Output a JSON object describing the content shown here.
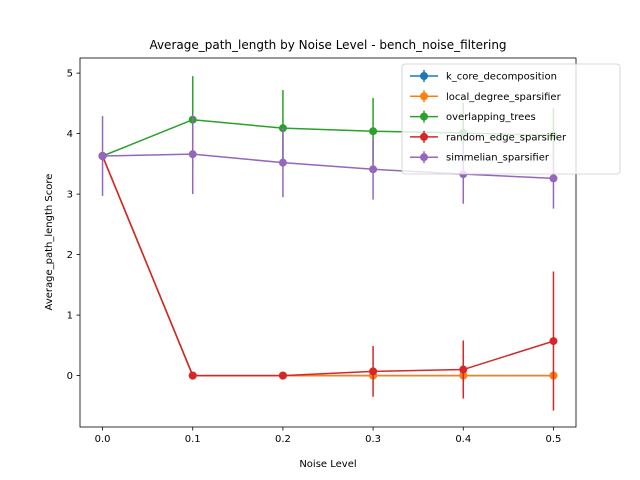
{
  "chart_data": {
    "type": "line",
    "title": "Average_path_length by Noise Level - bench_noise_filtering",
    "xlabel": "Noise Level",
    "ylabel": "Average_path_length Score",
    "x": [
      0.0,
      0.1,
      0.2,
      0.3,
      0.4,
      0.5
    ],
    "x_ticks": [
      "0.0",
      "0.1",
      "0.2",
      "0.3",
      "0.4",
      "0.5"
    ],
    "y_ticks": [
      "0",
      "1",
      "2",
      "3",
      "4",
      "5"
    ],
    "xlim": [
      -0.025,
      0.525
    ],
    "ylim": [
      -0.85,
      5.25
    ],
    "grid": false,
    "legend_position": "top-right",
    "error_bars": true,
    "series": [
      {
        "name": "k_core_decomposition",
        "color": "#1f77b4",
        "values": [
          3.63,
          0.0,
          0.0,
          0.0,
          0.0,
          0.0
        ],
        "errors": [
          0.0,
          0.0,
          0.0,
          0.0,
          0.0,
          0.0
        ]
      },
      {
        "name": "local_degree_sparsifier",
        "color": "#ff7f0e",
        "values": [
          3.63,
          0.0,
          0.0,
          0.0,
          0.0,
          0.0
        ],
        "errors": [
          0.0,
          0.0,
          0.0,
          0.0,
          0.0,
          0.0
        ]
      },
      {
        "name": "overlapping_trees",
        "color": "#2ca02c",
        "values": [
          3.63,
          4.23,
          4.09,
          4.04,
          4.01,
          3.97
        ],
        "errors": [
          0.0,
          0.72,
          0.63,
          0.55,
          0.5,
          0.45
        ]
      },
      {
        "name": "random_edge_sparsifier",
        "color": "#d62728",
        "values": [
          3.63,
          0.0,
          0.0,
          0.07,
          0.1,
          0.57
        ],
        "errors": [
          0.0,
          0.0,
          0.0,
          0.42,
          0.48,
          1.15
        ]
      },
      {
        "name": "simmelian_sparsifier",
        "color": "#9467bd",
        "values": [
          3.63,
          3.66,
          3.52,
          3.41,
          3.33,
          3.26
        ],
        "errors": [
          0.66,
          0.66,
          0.57,
          0.5,
          0.49,
          0.5
        ]
      }
    ]
  }
}
